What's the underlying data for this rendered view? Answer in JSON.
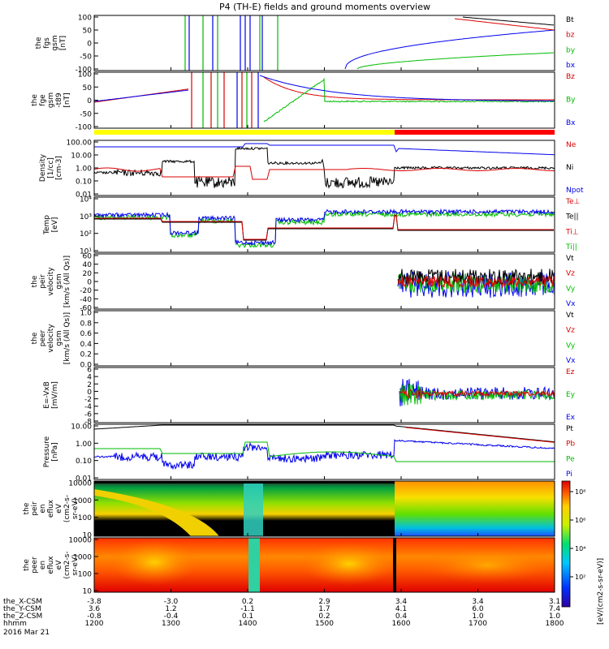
{
  "title": "P4 (TH-E) fields and ground moments overview",
  "chart_data": {
    "type": "line",
    "x_ticks": [
      "1200",
      "1300",
      "1400",
      "1500",
      "1600",
      "1700",
      "1800"
    ],
    "ephemeris_labels": [
      "the_X-CSM",
      "the_Y-CSM",
      "the_Z-CSM",
      "hhmm"
    ],
    "ephemeris": [
      [
        "-3.8",
        "-3.0",
        "0.2",
        "2.9",
        "3.4",
        "3.4",
        "3.1"
      ],
      [
        "3.6",
        "1.2",
        "-1.1",
        "1.7",
        "4.1",
        "6.0",
        "7.4"
      ],
      [
        "-0.8",
        "-0.4",
        "0.1",
        "0.2",
        "0.4",
        "1.0",
        "1.0"
      ]
    ],
    "date": "2016 Mar 21",
    "colorbar_label": "[eV/(cm2-s-sr-eV)]",
    "colorbar_ticks": [
      "10⁸",
      "10⁶",
      "10⁴",
      "10²"
    ],
    "panels": [
      {
        "id": "fgs",
        "ylabel": [
          "the",
          "fgs",
          "gsm",
          "[nT]"
        ],
        "ticks": [
          "100",
          "50",
          "0",
          "-50",
          "-100"
        ],
        "legend": [
          "Bt",
          "bz",
          "by",
          "bx"
        ],
        "colors": [
          "#000000",
          "#dd0000",
          "#00bb00",
          "#0000ee"
        ]
      },
      {
        "id": "fge",
        "ylabel": [
          "the",
          "fge",
          "gsm",
          "-t89",
          "[nT]"
        ],
        "ticks": [
          "100",
          "50",
          "0",
          "-50",
          "-100"
        ],
        "legend": [
          "Bz",
          "By",
          "Bx"
        ],
        "colors": [
          "#dd0000",
          "#00bb00",
          "#0000ee"
        ]
      },
      {
        "id": "density",
        "ylabel": [
          "Density",
          "[1/cc]",
          "[cm-3]"
        ],
        "ticks": [
          "100.00",
          "10.00",
          "1.00",
          "0.10",
          "0.01"
        ],
        "legend": [
          "Ne",
          "Ni",
          "Npot"
        ],
        "colors": [
          "#dd0000",
          "#000000",
          "#0000ee"
        ]
      },
      {
        "id": "temperature",
        "ylabel": [
          "Temp",
          "[eV]"
        ],
        "ticks": [
          "10⁴",
          "10³",
          "10²",
          "10¹"
        ],
        "legend": [
          "Te⊥",
          "Te||",
          "Ti⊥",
          "Ti||"
        ],
        "colors": [
          "#dd0000",
          "#000000",
          "#dd0000",
          "#00bb00"
        ]
      },
      {
        "id": "peir_velocity",
        "ylabel": [
          "the",
          "peir",
          "velocity",
          "gsm",
          "[km/s (All Qs)]"
        ],
        "ticks": [
          "60",
          "40",
          "20",
          "0",
          "-20",
          "-40",
          "-60"
        ],
        "legend": [
          "Vt",
          "Vz",
          "Vy",
          "Vx"
        ],
        "colors": [
          "#000000",
          "#dd0000",
          "#00bb00",
          "#0000ee"
        ]
      },
      {
        "id": "peer_velocity",
        "ylabel": [
          "the",
          "peer",
          "velocity",
          "gsm",
          "[km/s (All Qs)]"
        ],
        "ticks": [
          "1.0",
          "0.8",
          "0.6",
          "0.4",
          "0.2",
          "0.0"
        ],
        "legend": [
          "Vt",
          "Vz",
          "Vy",
          "Vx"
        ],
        "colors": [
          "#000000",
          "#dd0000",
          "#00bb00",
          "#0000ee"
        ]
      },
      {
        "id": "efield",
        "ylabel": [
          "E=-VxB",
          "[mV/m]"
        ],
        "ticks": [
          "6",
          "4",
          "2",
          "0",
          "-2",
          "-4",
          "-6",
          "-8"
        ],
        "legend": [
          "Ez",
          "Ey",
          "Ex"
        ],
        "colors": [
          "#dd0000",
          "#00bb00",
          "#0000ee"
        ]
      },
      {
        "id": "pressure",
        "ylabel": [
          "Pressure",
          "[nPa]"
        ],
        "ticks": [
          "10.00",
          "1.00",
          "0.10",
          "0.01"
        ],
        "legend": [
          "Pt",
          "Pb",
          "Pe",
          "Pi"
        ],
        "colors": [
          "#000000",
          "#dd0000",
          "#00bb00",
          "#0000ee"
        ]
      },
      {
        "id": "peir_eflux",
        "ylabel": [
          "the",
          "peir",
          "en",
          "eflux",
          "eV",
          "(cm2-s-",
          "sr-eV)"
        ],
        "ticks": [
          "10000",
          "1000",
          "100",
          "10"
        ],
        "legend": [],
        "colors": []
      },
      {
        "id": "peer_eflux",
        "ylabel": [
          "the",
          "peer",
          "en",
          "eflux",
          "eV",
          "(cm2-s-",
          "sr-eV)"
        ],
        "ticks": [
          "10000",
          "1000",
          "100",
          "10"
        ],
        "legend": [],
        "colors": []
      }
    ]
  }
}
